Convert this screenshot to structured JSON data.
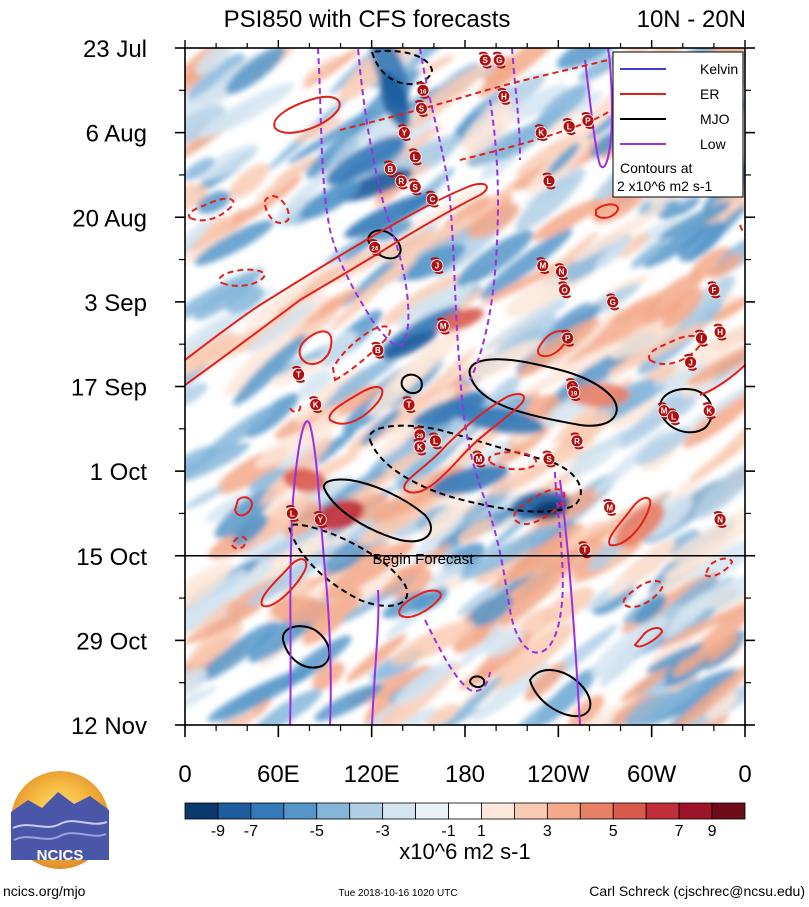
{
  "header": {
    "title": "PSI850 with CFS forecasts",
    "region": "10N - 20N"
  },
  "chart_data": {
    "type": "heatmap",
    "title": "PSI850 with CFS forecasts",
    "subtitle": "10N - 20N",
    "x_ticks": [
      "0",
      "60E",
      "120E",
      "180",
      "120W",
      "60W",
      "0"
    ],
    "x_values": [
      0,
      60,
      120,
      180,
      240,
      300,
      360
    ],
    "y_ticks": [
      "23 Jul",
      "6 Aug",
      "20 Aug",
      "3 Sep",
      "17 Sep",
      "1 Oct",
      "15 Oct",
      "29 Oct",
      "12 Nov"
    ],
    "y_values": [
      "2018-07-23",
      "2018-08-06",
      "2018-08-20",
      "2018-09-03",
      "2018-09-17",
      "2018-10-01",
      "2018-10-15",
      "2018-10-29",
      "2018-11-12"
    ],
    "forecast_start": "2018-10-15",
    "forecast_label": "Begin Forecast",
    "colorbar": {
      "levels": [
        -11,
        -9,
        -7,
        -6,
        -5,
        -4,
        -3,
        -2,
        -1,
        1,
        2,
        3,
        4,
        5,
        6,
        7,
        9,
        11
      ],
      "labels": [
        "-9",
        "-7",
        "-5",
        "-3",
        "-1",
        "1",
        "3",
        "5",
        "7",
        "9"
      ],
      "colors": [
        "#0b3b6e",
        "#1d5d9e",
        "#3479b8",
        "#5596c9",
        "#85b6da",
        "#b0cfe6",
        "#d4e5f1",
        "#eaf2f8",
        "#ffffff",
        "#fde7db",
        "#f9cbb4",
        "#f3a98a",
        "#e88068",
        "#d9594c",
        "#c22d39",
        "#9e1428",
        "#6e0c1a"
      ],
      "units": "x10^6 m2 s-1"
    },
    "legend": {
      "entries": [
        {
          "label": "Kelvin",
          "color": "#3c3cd6"
        },
        {
          "label": "ER",
          "color": "#e3201b"
        },
        {
          "label": "MJO",
          "color": "#000000"
        },
        {
          "label": "Low",
          "color": "#9b30e0"
        }
      ],
      "note1": "Contours at",
      "note2": "2 x10^6 m2 s-1",
      "position": "top-right"
    },
    "storms": [
      {
        "lon": 193,
        "date": "2018-07-25",
        "label": "S"
      },
      {
        "lon": 202,
        "date": "2018-07-25",
        "label": "G"
      },
      {
        "lon": 153,
        "date": "2018-07-30",
        "label": "16"
      },
      {
        "lon": 205,
        "date": "2018-07-31",
        "label": "H"
      },
      {
        "lon": 152,
        "date": "2018-08-02",
        "label": "S"
      },
      {
        "lon": 141,
        "date": "2018-08-06",
        "label": "Y"
      },
      {
        "lon": 229,
        "date": "2018-08-06",
        "label": "K"
      },
      {
        "lon": 247,
        "date": "2018-08-05",
        "label": "L"
      },
      {
        "lon": 259,
        "date": "2018-08-04",
        "label": "P"
      },
      {
        "lon": 148,
        "date": "2018-08-10",
        "label": "L"
      },
      {
        "lon": 132,
        "date": "2018-08-12",
        "label": "B"
      },
      {
        "lon": 139,
        "date": "2018-08-14",
        "label": "R"
      },
      {
        "lon": 148,
        "date": "2018-08-15",
        "label": "S"
      },
      {
        "lon": 159,
        "date": "2018-08-17",
        "label": "C"
      },
      {
        "lon": 234,
        "date": "2018-08-14",
        "label": "L"
      },
      {
        "lon": 122,
        "date": "2018-08-25",
        "label": "24"
      },
      {
        "lon": 162,
        "date": "2018-08-28",
        "label": "J"
      },
      {
        "lon": 230,
        "date": "2018-08-28",
        "label": "M"
      },
      {
        "lon": 242,
        "date": "2018-08-29",
        "label": "N"
      },
      {
        "lon": 244,
        "date": "2018-09-01",
        "label": "O"
      },
      {
        "lon": 275,
        "date": "2018-09-03",
        "label": "G"
      },
      {
        "lon": 340,
        "date": "2018-09-01",
        "label": "F"
      },
      {
        "lon": 166,
        "date": "2018-09-07",
        "label": "M"
      },
      {
        "lon": 246,
        "date": "2018-09-09",
        "label": "P"
      },
      {
        "lon": 332,
        "date": "2018-09-09",
        "label": "I"
      },
      {
        "lon": 344,
        "date": "2018-09-08",
        "label": "H"
      },
      {
        "lon": 124,
        "date": "2018-09-11",
        "label": "B"
      },
      {
        "lon": 325,
        "date": "2018-09-13",
        "label": "J"
      },
      {
        "lon": 73,
        "date": "2018-09-15",
        "label": "T"
      },
      {
        "lon": 249,
        "date": "2018-09-17",
        "label": "Q"
      },
      {
        "lon": 84,
        "date": "2018-09-20",
        "label": "K"
      },
      {
        "lon": 144,
        "date": "2018-09-20",
        "label": "T"
      },
      {
        "lon": 250,
        "date": "2018-09-18",
        "label": "19"
      },
      {
        "lon": 308,
        "date": "2018-09-21",
        "label": "M"
      },
      {
        "lon": 314,
        "date": "2018-09-22",
        "label": "L"
      },
      {
        "lon": 337,
        "date": "2018-09-21",
        "label": "K"
      },
      {
        "lon": 151,
        "date": "2018-09-25",
        "label": "29"
      },
      {
        "lon": 161,
        "date": "2018-09-26",
        "label": "L"
      },
      {
        "lon": 151,
        "date": "2018-09-27",
        "label": "K"
      },
      {
        "lon": 189,
        "date": "2018-09-29",
        "label": "M"
      },
      {
        "lon": 234,
        "date": "2018-09-29",
        "label": "S"
      },
      {
        "lon": 252,
        "date": "2018-09-26",
        "label": "R"
      },
      {
        "lon": 69,
        "date": "2018-10-08",
        "label": "L"
      },
      {
        "lon": 87,
        "date": "2018-10-09",
        "label": "Y"
      },
      {
        "lon": 273,
        "date": "2018-10-07",
        "label": "M"
      },
      {
        "lon": 344,
        "date": "2018-10-09",
        "label": "N"
      },
      {
        "lon": 257,
        "date": "2018-10-14",
        "label": "T"
      }
    ]
  },
  "footer": {
    "logo_text": "NCICS",
    "site": "ncics.org/mjo",
    "timestamp": "Tue 2018-10-16 1020 UTC",
    "credit": "Carl Schreck (cjschrec@ncsu.edu)"
  }
}
